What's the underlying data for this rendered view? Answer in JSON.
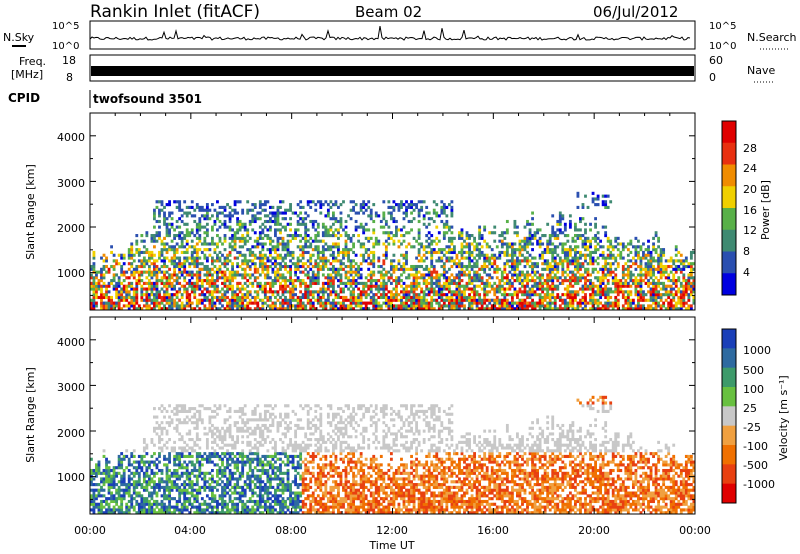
{
  "header": {
    "station": "Rankin Inlet (fitACF)",
    "beam": "Beam 02",
    "date": "06/Jul/2012"
  },
  "noise_panel": {
    "left_label": "N.Sky",
    "right_label": "N.Search",
    "left_ticks": [
      "10^5",
      "10^0"
    ],
    "right_ticks": [
      "10^5",
      "10^0"
    ]
  },
  "freq_panel": {
    "left_label_1": "Freq.",
    "left_label_2": "[MHz]",
    "right_label": "Nave",
    "left_ticks": [
      "18",
      "8"
    ],
    "right_ticks": [
      "60",
      "0"
    ]
  },
  "cpid_panel": {
    "label": "CPID",
    "program": "twofsound 3501"
  },
  "chart_data": [
    {
      "type": "heatmap",
      "name": "power",
      "ylabel": "Slant Range [km]",
      "ylim": [
        180,
        4500
      ],
      "yticks": [
        "4000",
        "3000",
        "2000",
        "1000"
      ],
      "colorbar_label": "Power [dB]",
      "colorbar_ticks": [
        "28",
        "24",
        "20",
        "16",
        "12",
        "8",
        "4"
      ],
      "colors": [
        "#0000e0",
        "#2a4fb0",
        "#3f8a72",
        "#58b048",
        "#f0d000",
        "#f08c00",
        "#e83010",
        "#e00000"
      ]
    },
    {
      "type": "heatmap",
      "name": "velocity",
      "ylabel": "Slant Range [km]",
      "xlabel": "Time UT",
      "ylim": [
        180,
        4500
      ],
      "yticks": [
        "4000",
        "3000",
        "2000",
        "1000"
      ],
      "xticks": [
        "00:00",
        "04:00",
        "08:00",
        "12:00",
        "16:00",
        "20:00",
        "00:00"
      ],
      "colorbar_label": "Velocity [m s⁻¹]",
      "colorbar_ticks": [
        "1000",
        "500",
        "100",
        "25",
        "-25",
        "-100",
        "-500",
        "-1000"
      ],
      "colors": [
        "#1a3fb8",
        "#2e6aa0",
        "#3d9a6a",
        "#68c040",
        "#c8c8c8",
        "#f0a040",
        "#f07000",
        "#e84010",
        "#e00000"
      ]
    }
  ]
}
